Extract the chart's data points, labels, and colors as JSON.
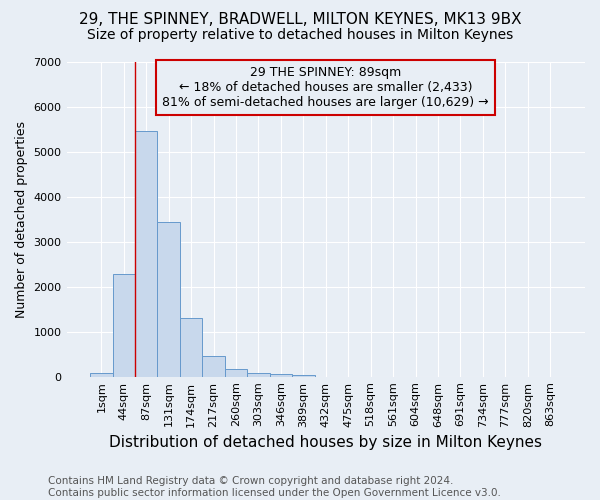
{
  "title1": "29, THE SPINNEY, BRADWELL, MILTON KEYNES, MK13 9BX",
  "title2": "Size of property relative to detached houses in Milton Keynes",
  "xlabel": "Distribution of detached houses by size in Milton Keynes",
  "ylabel": "Number of detached properties",
  "footnote": "Contains HM Land Registry data © Crown copyright and database right 2024.\nContains public sector information licensed under the Open Government Licence v3.0.",
  "bar_labels": [
    "1sqm",
    "44sqm",
    "87sqm",
    "131sqm",
    "174sqm",
    "217sqm",
    "260sqm",
    "303sqm",
    "346sqm",
    "389sqm",
    "432sqm",
    "475sqm",
    "518sqm",
    "561sqm",
    "604sqm",
    "648sqm",
    "691sqm",
    "734sqm",
    "777sqm",
    "820sqm",
    "863sqm"
  ],
  "bar_values": [
    75,
    2280,
    5460,
    3430,
    1310,
    450,
    175,
    90,
    65,
    40,
    0,
    0,
    0,
    0,
    0,
    0,
    0,
    0,
    0,
    0,
    0
  ],
  "bar_color": "#c8d8ec",
  "bar_edge_color": "#6699cc",
  "ylim": [
    0,
    7000
  ],
  "yticks": [
    0,
    1000,
    2000,
    3000,
    4000,
    5000,
    6000,
    7000
  ],
  "vline_x_index": 2,
  "vline_color": "#cc0000",
  "annotation_text": "29 THE SPINNEY: 89sqm\n← 18% of detached houses are smaller (2,433)\n81% of semi-detached houses are larger (10,629) →",
  "annotation_box_color": "#cc0000",
  "bg_color": "#e8eef5",
  "grid_color": "#ffffff",
  "title1_fontsize": 11,
  "title2_fontsize": 10,
  "xlabel_fontsize": 11,
  "ylabel_fontsize": 9,
  "tick_fontsize": 8,
  "annotation_fontsize": 9,
  "footnote_fontsize": 7.5
}
